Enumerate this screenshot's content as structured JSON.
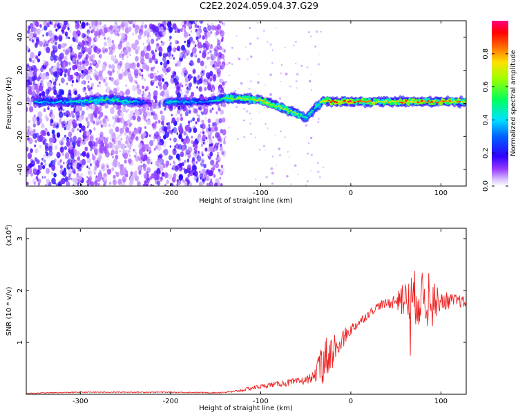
{
  "title": "C2E2.2024.059.04.37.G29",
  "chart_data": [
    {
      "type": "heatmap",
      "xlabel": "Height of straight line (km)",
      "ylabel": "Frequency (Hz)",
      "xlim": [
        -360,
        128
      ],
      "ylim": [
        -50,
        50
      ],
      "xticks": [
        -300,
        -200,
        -100,
        0,
        100
      ],
      "yticks": [
        -40,
        -20,
        0,
        20,
        40
      ],
      "colorbar": {
        "label": "Normalized spectral amplitude",
        "range": [
          0,
          1
        ],
        "ticks": [
          "0.0",
          "0.2",
          "0.4",
          "0.6",
          "0.8"
        ],
        "colormap": [
          "#ffffff",
          "#b48cff",
          "#7a00ff",
          "#0000ff",
          "#00ffff",
          "#00ff00",
          "#ffff00",
          "#ff8000",
          "#ff0000",
          "#ff00a0"
        ]
      },
      "noise_regions": [
        [
          -360,
          -140
        ]
      ],
      "ridge": {
        "x": [
          -350,
          -330,
          -300,
          -280,
          -260,
          -240,
          -220,
          -200,
          -180,
          -160,
          -140,
          -120,
          -100,
          -80,
          -60,
          -50,
          -40,
          -30,
          -20,
          -10,
          0,
          20,
          40,
          60,
          80,
          100,
          128
        ],
        "frequency": [
          1,
          1,
          1,
          2,
          2,
          1,
          0,
          1,
          1,
          1,
          3,
          3,
          2,
          -2,
          -6,
          -9,
          -3,
          2,
          1,
          1,
          1,
          1,
          1,
          1,
          1,
          1,
          1
        ],
        "amplitude": [
          0.4,
          0.35,
          0.45,
          0.5,
          0.5,
          0.4,
          0.1,
          0.45,
          0.35,
          0.3,
          0.55,
          0.65,
          0.7,
          0.7,
          0.6,
          0.45,
          0.5,
          0.7,
          0.85,
          0.85,
          0.9,
          0.75,
          0.7,
          0.8,
          0.85,
          0.8,
          0.75
        ]
      }
    },
    {
      "type": "line",
      "xlabel": "Height of straight line (km)",
      "ylabel": "SNR (10 * v/v)",
      "y_multiplier": "(x10",
      "y_multiplier_exp": "4",
      "y_multiplier_close": ")",
      "xlim": [
        -360,
        128
      ],
      "ylim": [
        0,
        3.2
      ],
      "xticks": [
        -300,
        -200,
        -100,
        0,
        100
      ],
      "yticks": [
        1,
        2,
        3
      ],
      "color": "#ee2222",
      "series": [
        {
          "x": [
            -360,
            -300,
            -200,
            -150,
            -130,
            -120,
            -110,
            -100,
            -90,
            -80,
            -70,
            -60,
            -50,
            -40,
            -35,
            -30,
            -25,
            -20,
            -15,
            -10,
            -5,
            0,
            10,
            20,
            30,
            40,
            50,
            60,
            70,
            80,
            90,
            100,
            110,
            120,
            128
          ],
          "values": [
            0.02,
            0.04,
            0.04,
            0.03,
            0.05,
            0.08,
            0.12,
            0.15,
            0.18,
            0.2,
            0.22,
            0.24,
            0.27,
            0.35,
            0.5,
            0.65,
            0.75,
            0.85,
            0.95,
            1.05,
            1.15,
            1.25,
            1.4,
            1.55,
            1.7,
            1.75,
            1.8,
            1.8,
            1.85,
            1.85,
            1.85,
            1.8,
            1.8,
            1.8,
            1.75
          ],
          "noise": [
            0.005,
            0.01,
            0.01,
            0.01,
            0.02,
            0.03,
            0.04,
            0.04,
            0.05,
            0.05,
            0.07,
            0.07,
            0.08,
            0.1,
            0.3,
            0.45,
            0.4,
            0.35,
            0.3,
            0.2,
            0.15,
            0.12,
            0.1,
            0.08,
            0.08,
            0.1,
            0.15,
            0.35,
            0.55,
            0.5,
            0.35,
            0.2,
            0.15,
            0.12,
            0.12
          ]
        }
      ]
    }
  ]
}
